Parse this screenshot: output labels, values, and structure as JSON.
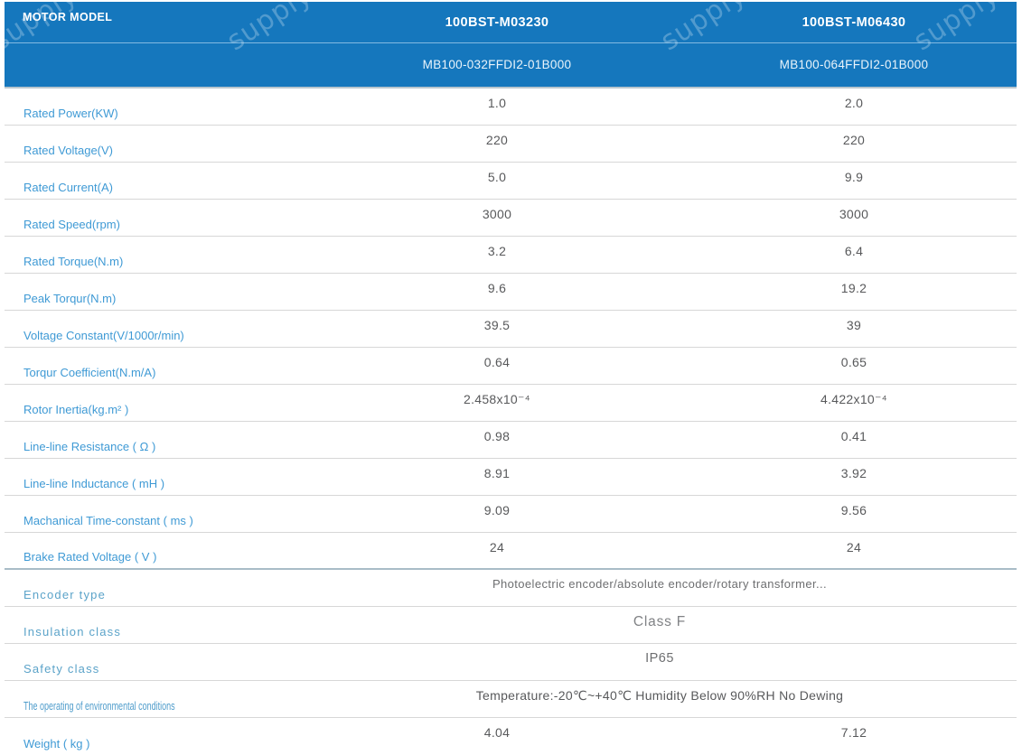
{
  "watermark": {
    "text": "supply-auto.co"
  },
  "header": {
    "corner_label": "MOTOR MODEL",
    "background_color": "#1577bd",
    "columns": [
      {
        "model": "100BST-M03230",
        "part_number": "MB100-032FFDI2-01B000"
      },
      {
        "model": "100BST-M06430",
        "part_number": "MB100-064FFDI2-01B000"
      }
    ]
  },
  "specs": {
    "rows": [
      {
        "label": "Rated Power(KW)",
        "values": [
          "1.0",
          "2.0"
        ]
      },
      {
        "label": "Rated Voltage(V)",
        "values": [
          "220",
          "220"
        ]
      },
      {
        "label": "Rated Current(A)",
        "values": [
          "5.0",
          "9.9"
        ]
      },
      {
        "label": "Rated Speed(rpm)",
        "values": [
          "3000",
          "3000"
        ]
      },
      {
        "label": "Rated Torque(N.m)",
        "values": [
          "3.2",
          "6.4"
        ]
      },
      {
        "label": "Peak Torqur(N.m)",
        "values": [
          "9.6",
          "19.2"
        ]
      },
      {
        "label": "Voltage Constant(V/1000r/min)",
        "values": [
          "39.5",
          "39"
        ]
      },
      {
        "label": "Torqur Coefficient(N.m/A)",
        "values": [
          "0.64",
          "0.65"
        ]
      },
      {
        "label": "Rotor Inertia(kg.m² )",
        "values": [
          "2.458x10⁻⁴",
          "4.422x10⁻⁴"
        ]
      },
      {
        "label": "Line-line Resistance ( Ω )",
        "values": [
          "0.98",
          "0.41"
        ]
      },
      {
        "label": "Line-line Inductance ( mH )",
        "values": [
          "8.91",
          "3.92"
        ]
      },
      {
        "label": "Machanical Time-constant ( ms )",
        "values": [
          "9.09",
          "9.56"
        ]
      },
      {
        "label": "Brake Rated Voltage ( V )",
        "values": [
          "24",
          "24"
        ],
        "divider": "strong"
      },
      {
        "label": "Encoder type",
        "label_style": "spaced",
        "span_value": "Photoelectric encoder/absolute encoder/rotary transformer...",
        "value_style": "small"
      },
      {
        "label": "Insulation class",
        "label_style": "spaced",
        "span_value": "Class F",
        "value_style": "classf"
      },
      {
        "label": "Safety class",
        "label_style": "spaced",
        "span_value": "IP65",
        "value_style": "ip"
      },
      {
        "label": "The operating of environmental conditions",
        "label_style": "condensed",
        "span_value": "Temperature:-20℃~+40℃  Humidity Below 90%RH No Dewing"
      },
      {
        "label": "Weight ( kg )",
        "values": [
          "4.04",
          "7.12"
        ]
      }
    ]
  }
}
